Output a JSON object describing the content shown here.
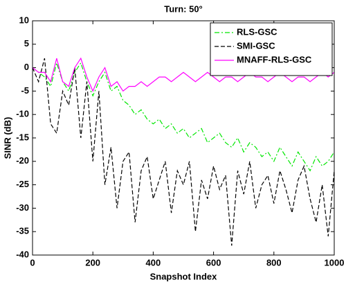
{
  "chart_data": {
    "type": "line",
    "title": "Turn: 50°",
    "x_label": "Snapshot Index",
    "y_label": "SINR (dB)",
    "x": [
      0,
      20,
      40,
      60,
      80,
      100,
      120,
      140,
      160,
      180,
      200,
      220,
      240,
      260,
      280,
      300,
      320,
      340,
      360,
      380,
      400,
      420,
      440,
      460,
      480,
      500,
      520,
      540,
      560,
      580,
      600,
      620,
      640,
      660,
      680,
      700,
      720,
      740,
      760,
      780,
      800,
      820,
      840,
      860,
      880,
      900,
      920,
      940,
      960,
      980,
      1000
    ],
    "series": [
      {
        "name": "RLS-GSC",
        "color": "#00e600",
        "line_style": "-.",
        "values": [
          0,
          -1,
          -2,
          -4,
          1,
          -3,
          -5,
          -1,
          1,
          -3,
          -6,
          -3,
          -1,
          -5,
          -4,
          -7,
          -8,
          -10,
          -9,
          -11,
          -12,
          -11,
          -13,
          -12,
          -14,
          -13,
          -15,
          -14,
          -13,
          -16,
          -15,
          -14,
          -16,
          -17,
          -15,
          -18,
          -16,
          -17,
          -19,
          -18,
          -20,
          -17,
          -19,
          -21,
          -18,
          -20,
          -22,
          -19,
          -21,
          -20,
          -18
        ]
      },
      {
        "name": "SMI-GSC",
        "color": "#000000",
        "line_style": "--",
        "values": [
          0,
          -3,
          2,
          -12,
          -14,
          -5,
          -8,
          0,
          -15,
          -3,
          -20,
          -5,
          -25,
          -17,
          -30,
          -20,
          -18,
          -33,
          -22,
          -19,
          -28,
          -24,
          -20,
          -31,
          -22,
          -25,
          -20,
          -35,
          -24,
          -28,
          -21,
          -26,
          -23,
          -38,
          -22,
          -27,
          -20,
          -30,
          -25,
          -23,
          -29,
          -22,
          -26,
          -31,
          -24,
          -21,
          -28,
          -33,
          -25,
          -36,
          -22
        ]
      },
      {
        "name": "MNAFF-RLS-GSC",
        "color": "#ff00ff",
        "line_style": "-",
        "values": [
          0,
          -1,
          -1,
          -3,
          2,
          -3,
          -4,
          0,
          2,
          -2,
          -5,
          -2,
          0,
          -4,
          -3,
          -5,
          -4,
          -4,
          -3,
          -4,
          -3,
          -2,
          -2,
          -3,
          -2,
          -1,
          -2,
          -3,
          -2,
          -1,
          -2,
          -3,
          -2,
          -2,
          -3,
          -2,
          -1,
          -2,
          -2,
          -3,
          -2,
          -1,
          -2,
          -3,
          -2,
          -2,
          -3,
          -2,
          -1,
          -2,
          -1
        ]
      }
    ],
    "xlim": [
      0,
      1000
    ],
    "xticks": [
      0,
      200,
      400,
      600,
      800,
      1000
    ],
    "ylim": [
      -40,
      10
    ],
    "yticks": [
      -40,
      -35,
      -30,
      -25,
      -20,
      -15,
      -10,
      -5,
      0,
      5,
      10
    ],
    "grid": false,
    "legend": "northeast"
  }
}
